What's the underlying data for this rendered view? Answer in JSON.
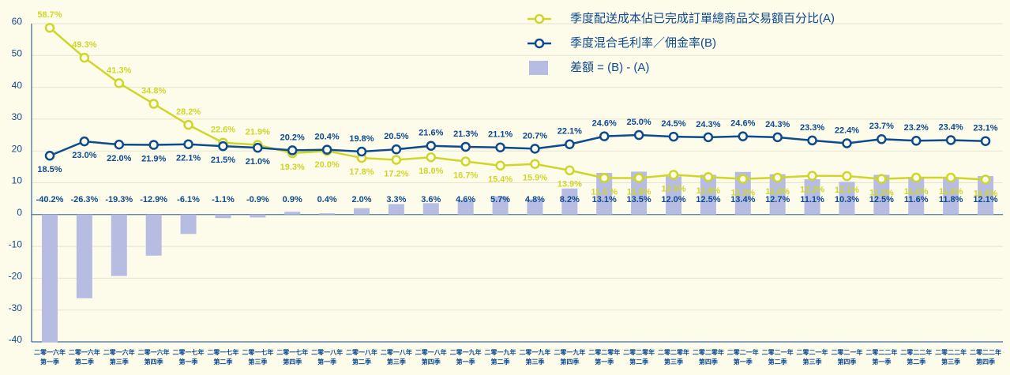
{
  "chart_data": {
    "type": "line_bar",
    "categories": [
      "二零一六年\n第一季",
      "二零一六年\n第二季",
      "二零一六年\n第三季",
      "二零一六年\n第四季",
      "二零一七年\n第一季",
      "二零一七年\n第二季",
      "二零一七年\n第三季",
      "二零一七年\n第四季",
      "二零一八年\n第一季",
      "二零一八年\n第二季",
      "二零一八年\n第三季",
      "二零一八年\n第四季",
      "二零一九年\n第一季",
      "二零一九年\n第二季",
      "二零一九年\n第三季",
      "二零一九年\n第四季",
      "二零二零年\n第一季",
      "二零二零年\n第二季",
      "二零二零年\n第三季",
      "二零二零年\n第四季",
      "二零二一年\n第一季",
      "二零二一年\n第二季",
      "二零二一年\n第三季",
      "二零二一年\n第四季",
      "二零二二年\n第一季",
      "二零二二年\n第二季",
      "二零二二年\n第三季",
      "二零二二年\n第四季"
    ],
    "series": [
      {
        "name": "季度配送成本佔已完成訂單總商品交易額百分比(A)",
        "kind": "line",
        "color": "#cfd629",
        "values": [
          58.7,
          49.3,
          41.3,
          34.8,
          28.2,
          22.6,
          21.9,
          19.3,
          20.0,
          17.8,
          17.2,
          18.0,
          16.7,
          15.4,
          15.9,
          13.9,
          11.5,
          11.5,
          12.5,
          11.8,
          11.2,
          11.6,
          12.2,
          12.1,
          11.2,
          11.6,
          11.6,
          11.0
        ],
        "value_labels": [
          "58.7%",
          "49.3%",
          "41.3%",
          "34.8%",
          "28.2%",
          "22.6%",
          "21.9%",
          "19.3%",
          "20.0%",
          "17.8%",
          "17.2%",
          "18.0%",
          "16.7%",
          "15.4%",
          "15.9%",
          "13.9%",
          "11.5 %",
          "11.5%",
          "12.5%",
          "11.8%",
          "11.2%",
          "11.6%",
          "12.2%",
          "12.1%",
          "11.2%",
          "11.6%",
          "11.6%",
          "11.0%"
        ]
      },
      {
        "name": "季度混合毛利率／佣金率(B)",
        "kind": "line",
        "color": "#0d4a8f",
        "values": [
          18.5,
          23.0,
          22.0,
          21.9,
          22.1,
          21.5,
          21.0,
          20.2,
          20.4,
          19.8,
          20.5,
          21.6,
          21.3,
          21.1,
          20.7,
          22.1,
          24.6,
          25.0,
          24.5,
          24.3,
          24.6,
          24.3,
          23.3,
          22.4,
          23.7,
          23.2,
          23.4,
          23.1
        ],
        "value_labels": [
          "18.5%",
          "23.0%",
          "22.0%",
          "21.9%",
          "22.1%",
          "21.5%",
          "21.0%",
          "20.2%",
          "20.4%",
          "19.8%",
          "20.5%",
          "21.6%",
          "21.3%",
          "21.1%",
          "20.7%",
          "22.1%",
          "24.6%",
          "25.0%",
          "24.5%",
          "24.3%",
          "24.6%",
          "24.3%",
          "23.3%",
          "22.4%",
          "23.7%",
          "23.2%",
          "23.4%",
          "23.1%"
        ]
      },
      {
        "name": "差額 = (B) - (A)",
        "kind": "bar",
        "color": "#b7bde2",
        "values": [
          -40.2,
          -26.3,
          -19.3,
          -12.9,
          -6.1,
          -1.1,
          -0.9,
          0.9,
          0.4,
          2.0,
          3.3,
          3.6,
          4.6,
          5.7,
          4.8,
          8.2,
          13.1,
          13.5,
          12.0,
          12.5,
          13.4,
          12.7,
          11.1,
          10.3,
          12.5,
          11.6,
          11.8,
          12.1
        ],
        "value_labels": [
          "-40.2%",
          "-26.3%",
          "-19.3%",
          "-12.9%",
          "-6.1%",
          "-1.1%",
          "-0.9%",
          "0.9%",
          "0.4%",
          "2.0%",
          "3.3%",
          "3.6%",
          "4.6%",
          "5.7%",
          "4.8%",
          "8.2%",
          "13.1%",
          "13.5%",
          "12.0%",
          "12.5%",
          "13.4%",
          "12.7%",
          "11.1%",
          "10.3%",
          "12.5%",
          "11.6%",
          "11.8%",
          "12.1%"
        ]
      }
    ],
    "ylim": [
      -40,
      60
    ],
    "yticks": [
      -40,
      -30,
      -20,
      -10,
      0,
      10,
      20,
      30,
      40,
      50,
      60
    ],
    "grid": true,
    "legend": "upper right"
  }
}
